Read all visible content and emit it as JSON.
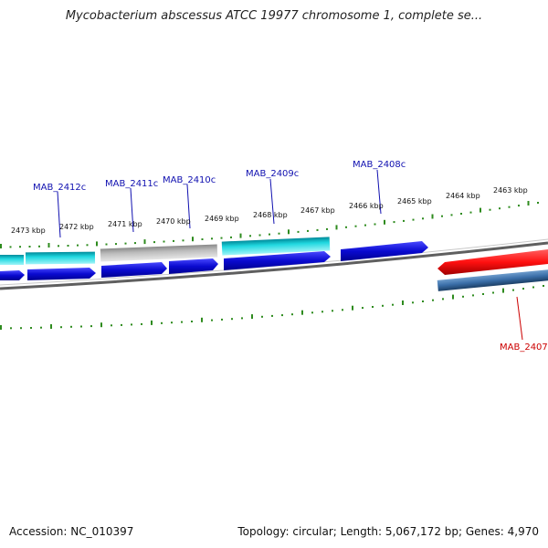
{
  "title": "Mycobacterium abscessus ATCC 19977 chromosome 1, complete se...",
  "footer": {
    "accession": "Accession: NC_010397",
    "summary": "Topology: circular; Length: 5,067,172 bp; Genes: 4,970"
  },
  "tick_labels": [
    "2473 kbp",
    "2472 kbp",
    "2471 kbp",
    "2470 kbp",
    "2469 kbp",
    "2468 kbp",
    "2467 kbp",
    "2466 kbp",
    "2465 kbp",
    "2464 kbp",
    "2463 kbp"
  ],
  "gene_labels": [
    "MAB_2412c",
    "MAB_2411c",
    "MAB_2410c",
    "MAB_2409c",
    "MAB_2408c",
    "MAB_2407"
  ],
  "colors": {
    "tick": "#2e8b1e",
    "label_blue": "#1010b0",
    "label_red": "#cc0000",
    "gene_blue": "#0a0ad0",
    "gene_cyan": "#20d8e0",
    "gene_gray": "#b4b4b4",
    "gene_red": "#ff1010",
    "gene_steel": "#3a6ea8",
    "backbone": "#777777"
  }
}
